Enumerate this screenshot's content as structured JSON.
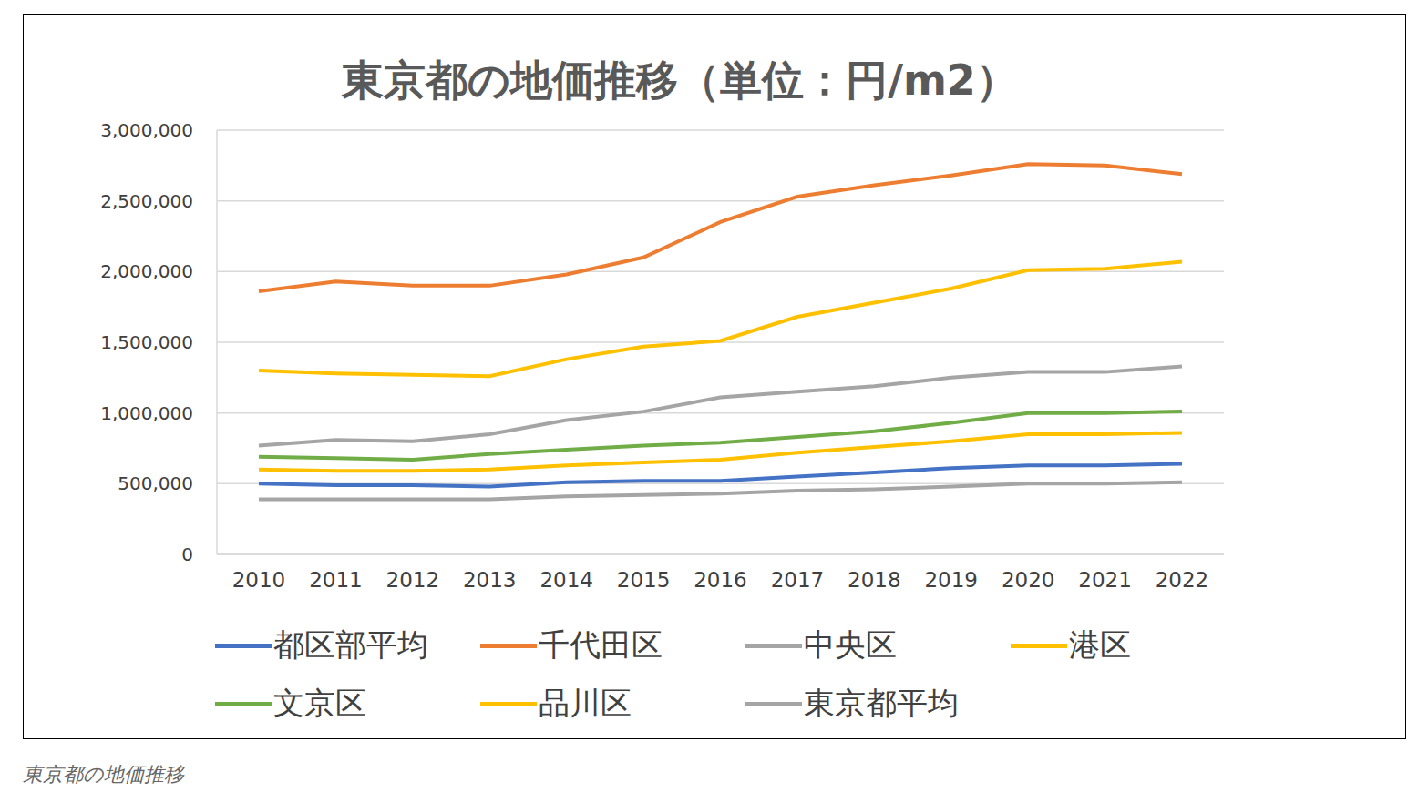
{
  "chart_data": {
    "type": "line",
    "title": "東京都の地価推移（単位：円/m2）",
    "caption": "東京都の地価推移",
    "categories": [
      "2010",
      "2011",
      "2012",
      "2013",
      "2014",
      "2015",
      "2016",
      "2017",
      "2018",
      "2019",
      "2020",
      "2021",
      "2022"
    ],
    "series": [
      {
        "name": "都区部平均",
        "color": "#4472c4",
        "values": [
          500000,
          490000,
          490000,
          480000,
          510000,
          520000,
          520000,
          550000,
          580000,
          610000,
          630000,
          630000,
          640000
        ]
      },
      {
        "name": "千代田区",
        "color": "#ed7d31",
        "values": [
          1860000,
          1930000,
          1900000,
          1900000,
          1980000,
          2100000,
          2350000,
          2530000,
          2610000,
          2680000,
          2760000,
          2750000,
          2690000
        ]
      },
      {
        "name": "中央区",
        "color": "#a5a5a5",
        "values": [
          770000,
          810000,
          800000,
          850000,
          950000,
          1010000,
          1110000,
          1150000,
          1190000,
          1250000,
          1290000,
          1290000,
          1330000
        ]
      },
      {
        "name": "港区",
        "color": "#ffc000",
        "values": [
          1300000,
          1280000,
          1270000,
          1260000,
          1380000,
          1470000,
          1510000,
          1680000,
          1780000,
          1880000,
          2010000,
          2020000,
          2070000
        ]
      },
      {
        "name": "文京区",
        "color": "#70ad47",
        "values": [
          690000,
          680000,
          670000,
          710000,
          740000,
          770000,
          790000,
          830000,
          870000,
          930000,
          1000000,
          1000000,
          1010000
        ]
      },
      {
        "name": "品川区",
        "color": "#ffc000",
        "values": [
          600000,
          590000,
          590000,
          600000,
          630000,
          650000,
          670000,
          720000,
          760000,
          800000,
          850000,
          850000,
          860000
        ]
      },
      {
        "name": "東京都平均",
        "color": "#a5a5a5",
        "values": [
          390000,
          390000,
          390000,
          390000,
          410000,
          420000,
          430000,
          450000,
          460000,
          480000,
          500000,
          500000,
          510000
        ]
      }
    ],
    "ylim": [
      0,
      3000000
    ],
    "yticks": [
      0,
      {
        "value": 500000,
        "label": "500,000"
      },
      {
        "value": 1000000,
        "label": "1,000,000"
      },
      {
        "value": 1500000,
        "label": "1,500,000"
      },
      {
        "value": 2000000,
        "label": "2,000,000"
      },
      {
        "value": 2500000,
        "label": "2,500,000"
      },
      {
        "value": 3000000,
        "label": "3,000,000"
      }
    ],
    "grid": true,
    "legend": "bottom",
    "marker": "none"
  }
}
